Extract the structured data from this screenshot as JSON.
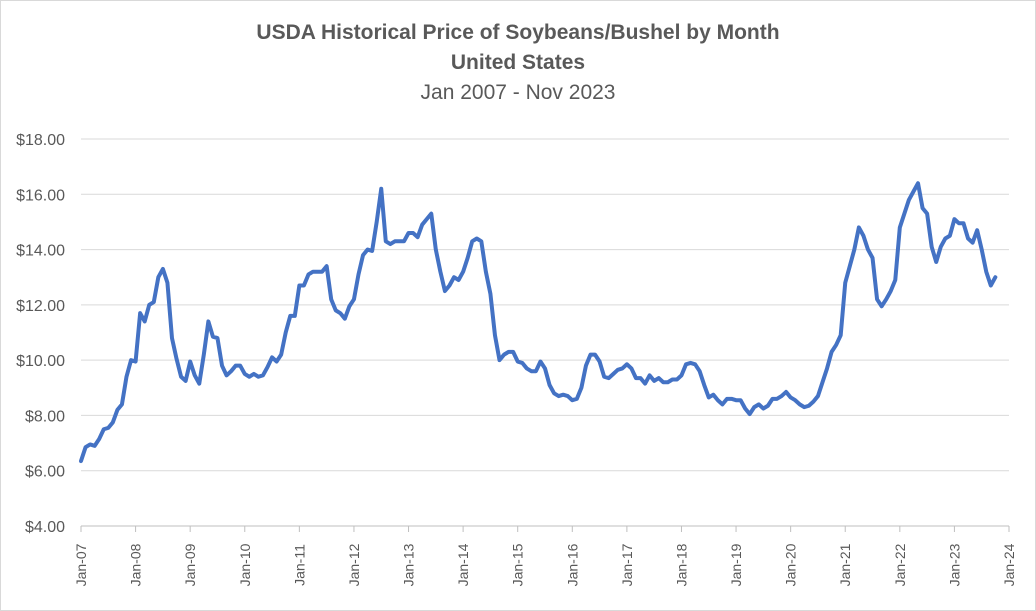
{
  "chart_data": {
    "type": "line",
    "title": "USDA Historical Price of Soybeans/Bushel by Month",
    "subtitle": "United States",
    "subtitle2": "Jan 2007 - Nov 2023",
    "xlabel": "",
    "ylabel": "",
    "ylim": [
      4,
      18
    ],
    "y_ticks": [
      4,
      6,
      8,
      10,
      12,
      14,
      16,
      18
    ],
    "y_tick_labels": [
      "$4.00",
      "$6.00",
      "$8.00",
      "$10.00",
      "$12.00",
      "$14.00",
      "$16.00",
      "$18.00"
    ],
    "x_tick_labels": [
      "Jan-07",
      "Jan-08",
      "Jan-09",
      "Jan-10",
      "Jan-11",
      "Jan-12",
      "Jan-13",
      "Jan-14",
      "Jan-15",
      "Jan-16",
      "Jan-17",
      "Jan-18",
      "Jan-19",
      "Jan-20",
      "Jan-21",
      "Jan-22",
      "Jan-23",
      "Jan-24"
    ],
    "grid": true,
    "line_color": "#4472c4",
    "series": [
      {
        "start": "Jan-07",
        "values": [
          6.35,
          6.85,
          6.95,
          6.9,
          7.15,
          7.5,
          7.55,
          7.75,
          8.2,
          8.4,
          9.4,
          10.0,
          9.95,
          11.7,
          11.4,
          12.0,
          12.1,
          13.0,
          13.3,
          12.8,
          10.8,
          10.05,
          9.4,
          9.25,
          9.95,
          9.45,
          9.15,
          10.2,
          11.4,
          10.85,
          10.8,
          9.8,
          9.45,
          9.6,
          9.8,
          9.8,
          9.5,
          9.4,
          9.5,
          9.4,
          9.45,
          9.75,
          10.1,
          9.95,
          10.2,
          11.0,
          11.6,
          11.6,
          12.7,
          12.7,
          13.1,
          13.2,
          13.2,
          13.2,
          13.4,
          12.2,
          11.8,
          11.7,
          11.5,
          11.95,
          12.2,
          13.1,
          13.8,
          14.0,
          13.95,
          15.0,
          16.2,
          14.3,
          14.2,
          14.3,
          14.3,
          14.3,
          14.6,
          14.6,
          14.45,
          14.9,
          15.1,
          15.3,
          14.0,
          13.2,
          12.5,
          12.7,
          13.0,
          12.9,
          13.2,
          13.7,
          14.3,
          14.4,
          14.3,
          13.2,
          12.4,
          10.9,
          10.0,
          10.2,
          10.3,
          10.3,
          9.95,
          9.9,
          9.7,
          9.6,
          9.6,
          9.95,
          9.7,
          9.1,
          8.8,
          8.7,
          8.75,
          8.7,
          8.55,
          8.6,
          9.0,
          9.8,
          10.2,
          10.2,
          9.95,
          9.4,
          9.35,
          9.5,
          9.65,
          9.7,
          9.85,
          9.7,
          9.35,
          9.35,
          9.15,
          9.45,
          9.25,
          9.35,
          9.2,
          9.2,
          9.3,
          9.3,
          9.45,
          9.85,
          9.9,
          9.85,
          9.6,
          9.1,
          8.65,
          8.75,
          8.55,
          8.4,
          8.6,
          8.6,
          8.55,
          8.55,
          8.25,
          8.05,
          8.3,
          8.4,
          8.25,
          8.35,
          8.6,
          8.6,
          8.7,
          8.85,
          8.65,
          8.55,
          8.4,
          8.3,
          8.35,
          8.5,
          8.7,
          9.2,
          9.7,
          10.3,
          10.55,
          10.9,
          12.8,
          13.4,
          14.0,
          14.8,
          14.5,
          14.0,
          13.7,
          12.2,
          11.95,
          12.2,
          12.5,
          12.9,
          14.8,
          15.3,
          15.8,
          16.1,
          16.4,
          15.5,
          15.3,
          14.1,
          13.55,
          14.1,
          14.4,
          14.5,
          15.1,
          14.95,
          14.95,
          14.4,
          14.25,
          14.7,
          14.0,
          13.2,
          12.7,
          13.0
        ]
      }
    ]
  }
}
